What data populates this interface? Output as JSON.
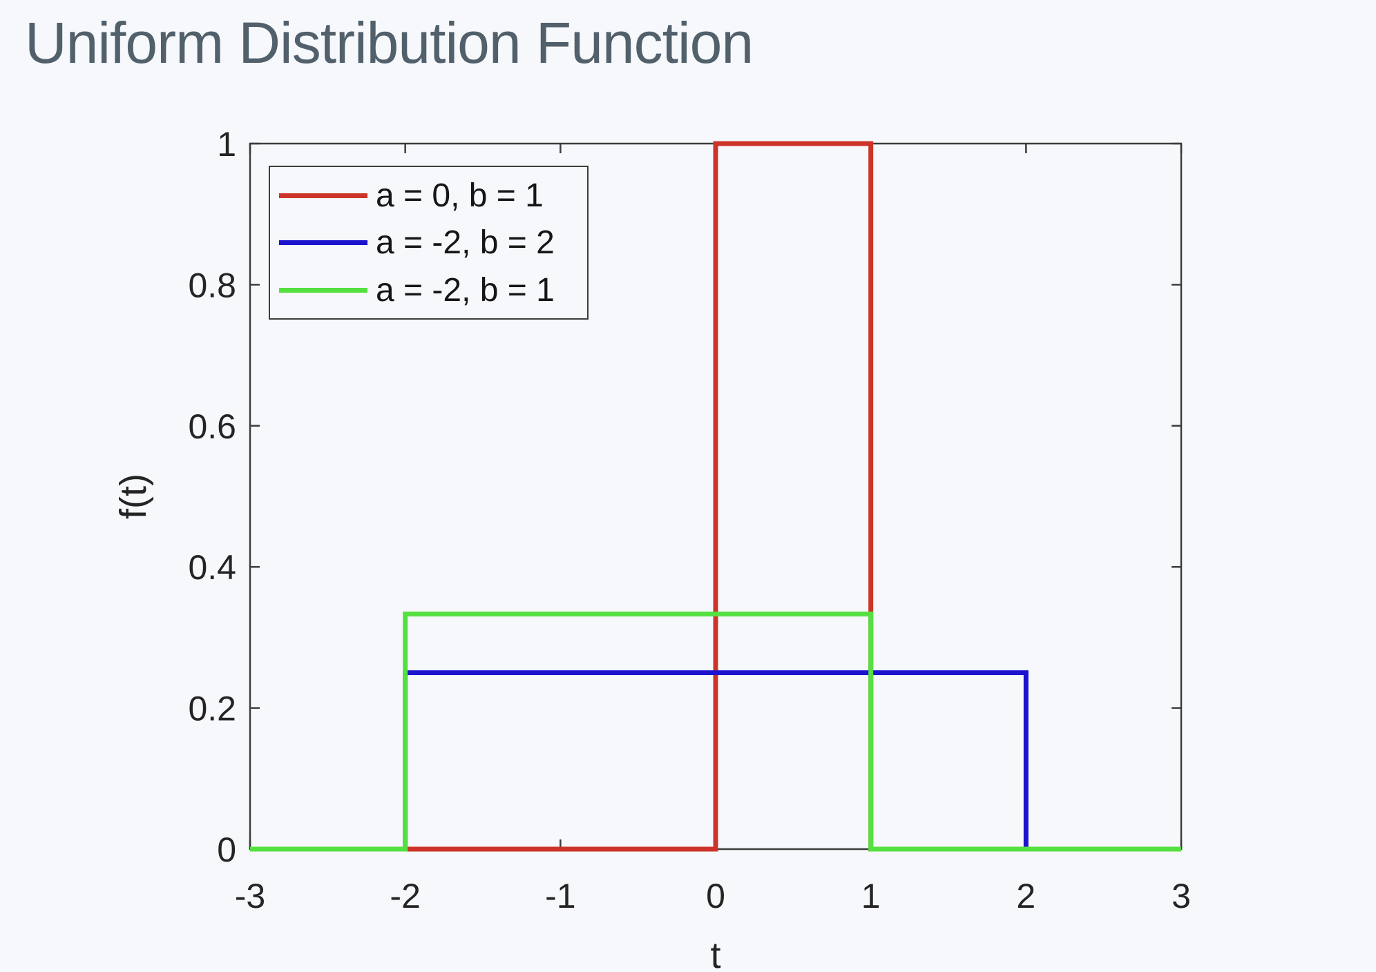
{
  "page": {
    "title": "Uniform Distribution Function"
  },
  "chart_data": {
    "type": "line",
    "title": "Uniform Distribution Function",
    "xlabel": "t",
    "ylabel": "f(t)",
    "xlim": [
      -3,
      3
    ],
    "ylim": [
      0,
      1
    ],
    "xticks": [
      -3,
      -2,
      -1,
      0,
      1,
      2,
      3
    ],
    "xtick_labels": [
      "-3",
      "-2",
      "-1",
      "0",
      "1",
      "2",
      "3"
    ],
    "yticks": [
      0,
      0.2,
      0.4,
      0.6,
      0.8,
      1
    ],
    "ytick_labels": [
      "0",
      "0.2",
      "0.4",
      "0.6",
      "0.8",
      "1"
    ],
    "grid": false,
    "box": true,
    "tick_direction": "in",
    "legend_position": "top-left-inside",
    "colors": {
      "background": "#f6f8fb",
      "axis": "#3c3c3c",
      "title_text": "#51606b",
      "tick_text": "#242424"
    },
    "series": [
      {
        "name": "a = 0, b = 1",
        "color": "#cd3429",
        "x": [
          -3,
          0,
          0,
          1,
          1,
          3
        ],
        "y": [
          0,
          0,
          1,
          1,
          0,
          0
        ]
      },
      {
        "name": "a = -2, b = 2",
        "color": "#1c13cf",
        "x": [
          -3,
          -2,
          -2,
          2,
          2,
          3
        ],
        "y": [
          0,
          0,
          0.25,
          0.25,
          0,
          0
        ]
      },
      {
        "name": "a = -2, b = 1",
        "color": "#55e041",
        "x": [
          -3,
          -2,
          -2,
          1,
          1,
          3
        ],
        "y": [
          0,
          0,
          0.3333,
          0.3333,
          0,
          0
        ]
      }
    ]
  }
}
